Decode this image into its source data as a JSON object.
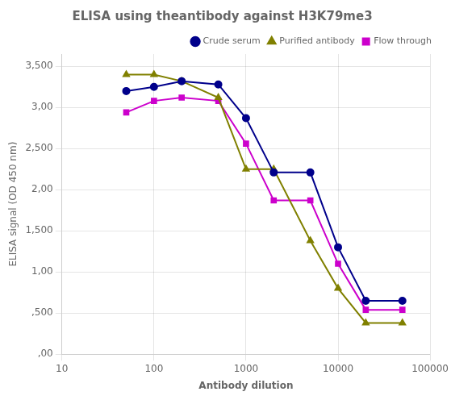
{
  "chart_data": {
    "type": "line",
    "title": "ELISA using theantibody against H3K79me3",
    "x_label": "Antibody dilution",
    "y_label": "ELISA signal (OD 450 nm)",
    "log": "x",
    "x": [
      50,
      100,
      200,
      500,
      1000,
      2000,
      5000,
      10000,
      20000,
      50000
    ],
    "xlim": [
      10,
      100000
    ],
    "xticks": [
      10,
      100,
      1000,
      10000,
      100000
    ],
    "ylim": [
      0.0,
      3.65
    ],
    "yticks": [
      {
        "value": 0.0,
        "label": ",00"
      },
      {
        "value": 0.5,
        "label": ",500"
      },
      {
        "value": 1.0,
        "label": "1,00"
      },
      {
        "value": 1.5,
        "label": "1,500"
      },
      {
        "value": 2.0,
        "label": "2,00"
      },
      {
        "value": 2.5,
        "label": "2,500"
      },
      {
        "value": 3.0,
        "label": "3,00"
      },
      {
        "value": 3.5,
        "label": "3,500"
      }
    ],
    "grid": true,
    "legend": "upper right",
    "series": [
      {
        "name": "Crude serum",
        "color": "#00008B",
        "marker": "o",
        "values": [
          3.2,
          3.25,
          3.32,
          3.28,
          2.87,
          2.21,
          2.21,
          1.3,
          0.65,
          0.65
        ]
      },
      {
        "name": "Purified antibody",
        "color": "#808000",
        "marker": "^",
        "values": [
          3.4,
          3.4,
          3.32,
          3.12,
          2.25,
          2.25,
          1.38,
          0.8,
          0.38,
          0.38
        ]
      },
      {
        "name": "Flow through",
        "color": "#CC00CC",
        "marker": "s",
        "values": [
          2.94,
          3.08,
          3.12,
          3.08,
          2.56,
          1.87,
          1.87,
          1.1,
          0.54,
          0.54
        ]
      }
    ]
  }
}
